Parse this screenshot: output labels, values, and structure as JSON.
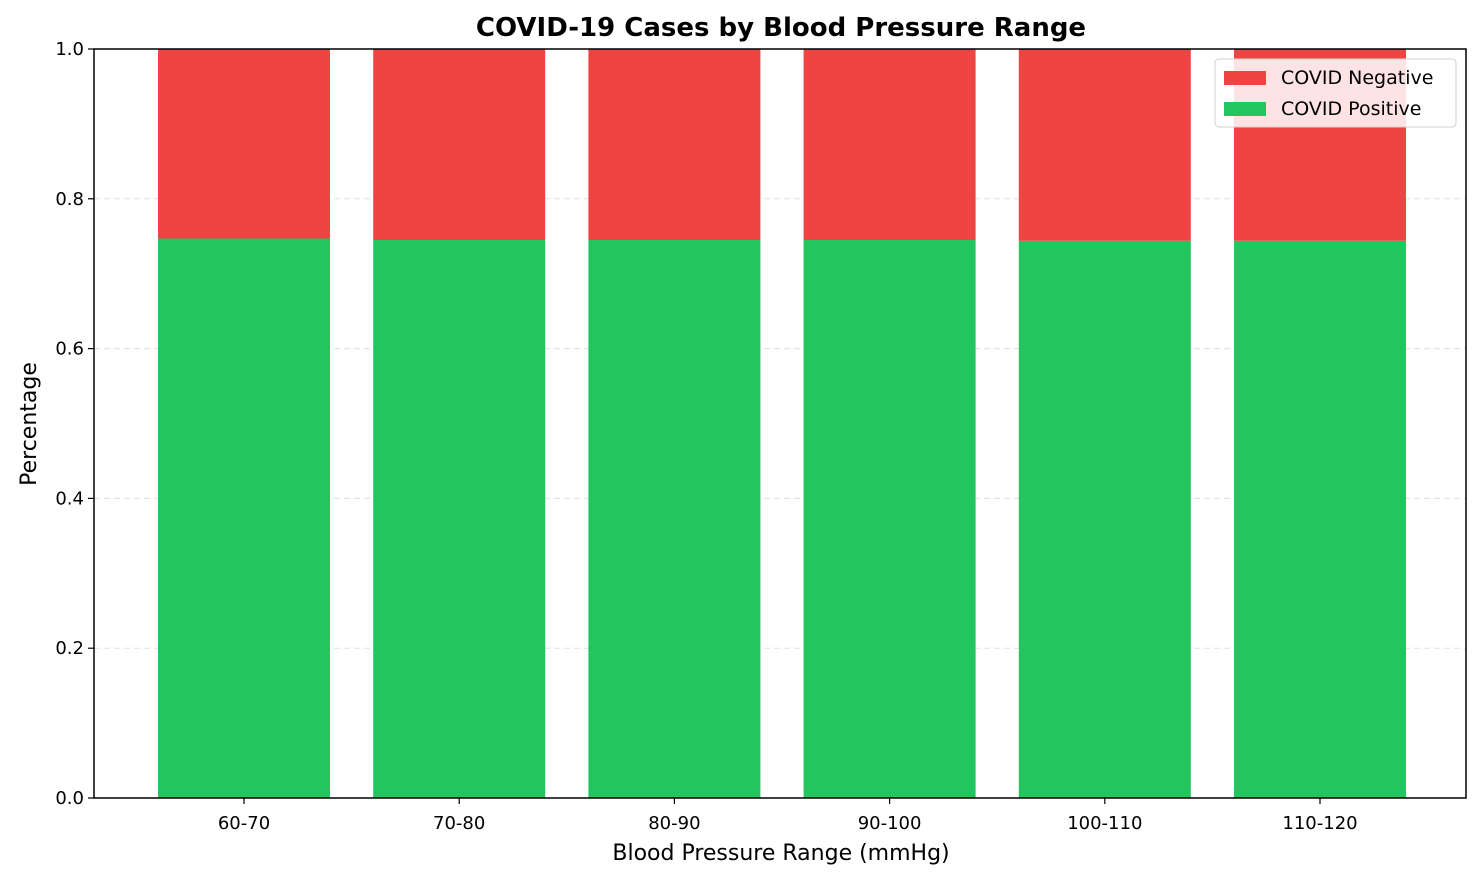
{
  "chart_data": {
    "type": "bar",
    "stacked": true,
    "title": "COVID-19 Cases by Blood Pressure Range",
    "xlabel": "Blood Pressure Range (mmHg)",
    "ylabel": "Percentage",
    "ylim": [
      0,
      1.0
    ],
    "yticks": [
      0.0,
      0.2,
      0.4,
      0.6,
      0.8,
      1.0
    ],
    "ytick_labels": [
      "0.0",
      "0.2",
      "0.4",
      "0.6",
      "0.8",
      "1.0"
    ],
    "grid": "y-dashed",
    "legend_position": "top-right",
    "categories": [
      "60-70",
      "70-80",
      "80-90",
      "90-100",
      "100-110",
      "110-120"
    ],
    "series": [
      {
        "name": "COVID Positive",
        "color": "#22c55e",
        "values": [
          0.747,
          0.745,
          0.745,
          0.745,
          0.744,
          0.744
        ]
      },
      {
        "name": "COVID Negative",
        "color": "#ef4444",
        "values": [
          0.253,
          0.255,
          0.255,
          0.255,
          0.256,
          0.256
        ]
      }
    ],
    "legend_order": [
      "COVID Negative",
      "COVID Positive"
    ]
  }
}
